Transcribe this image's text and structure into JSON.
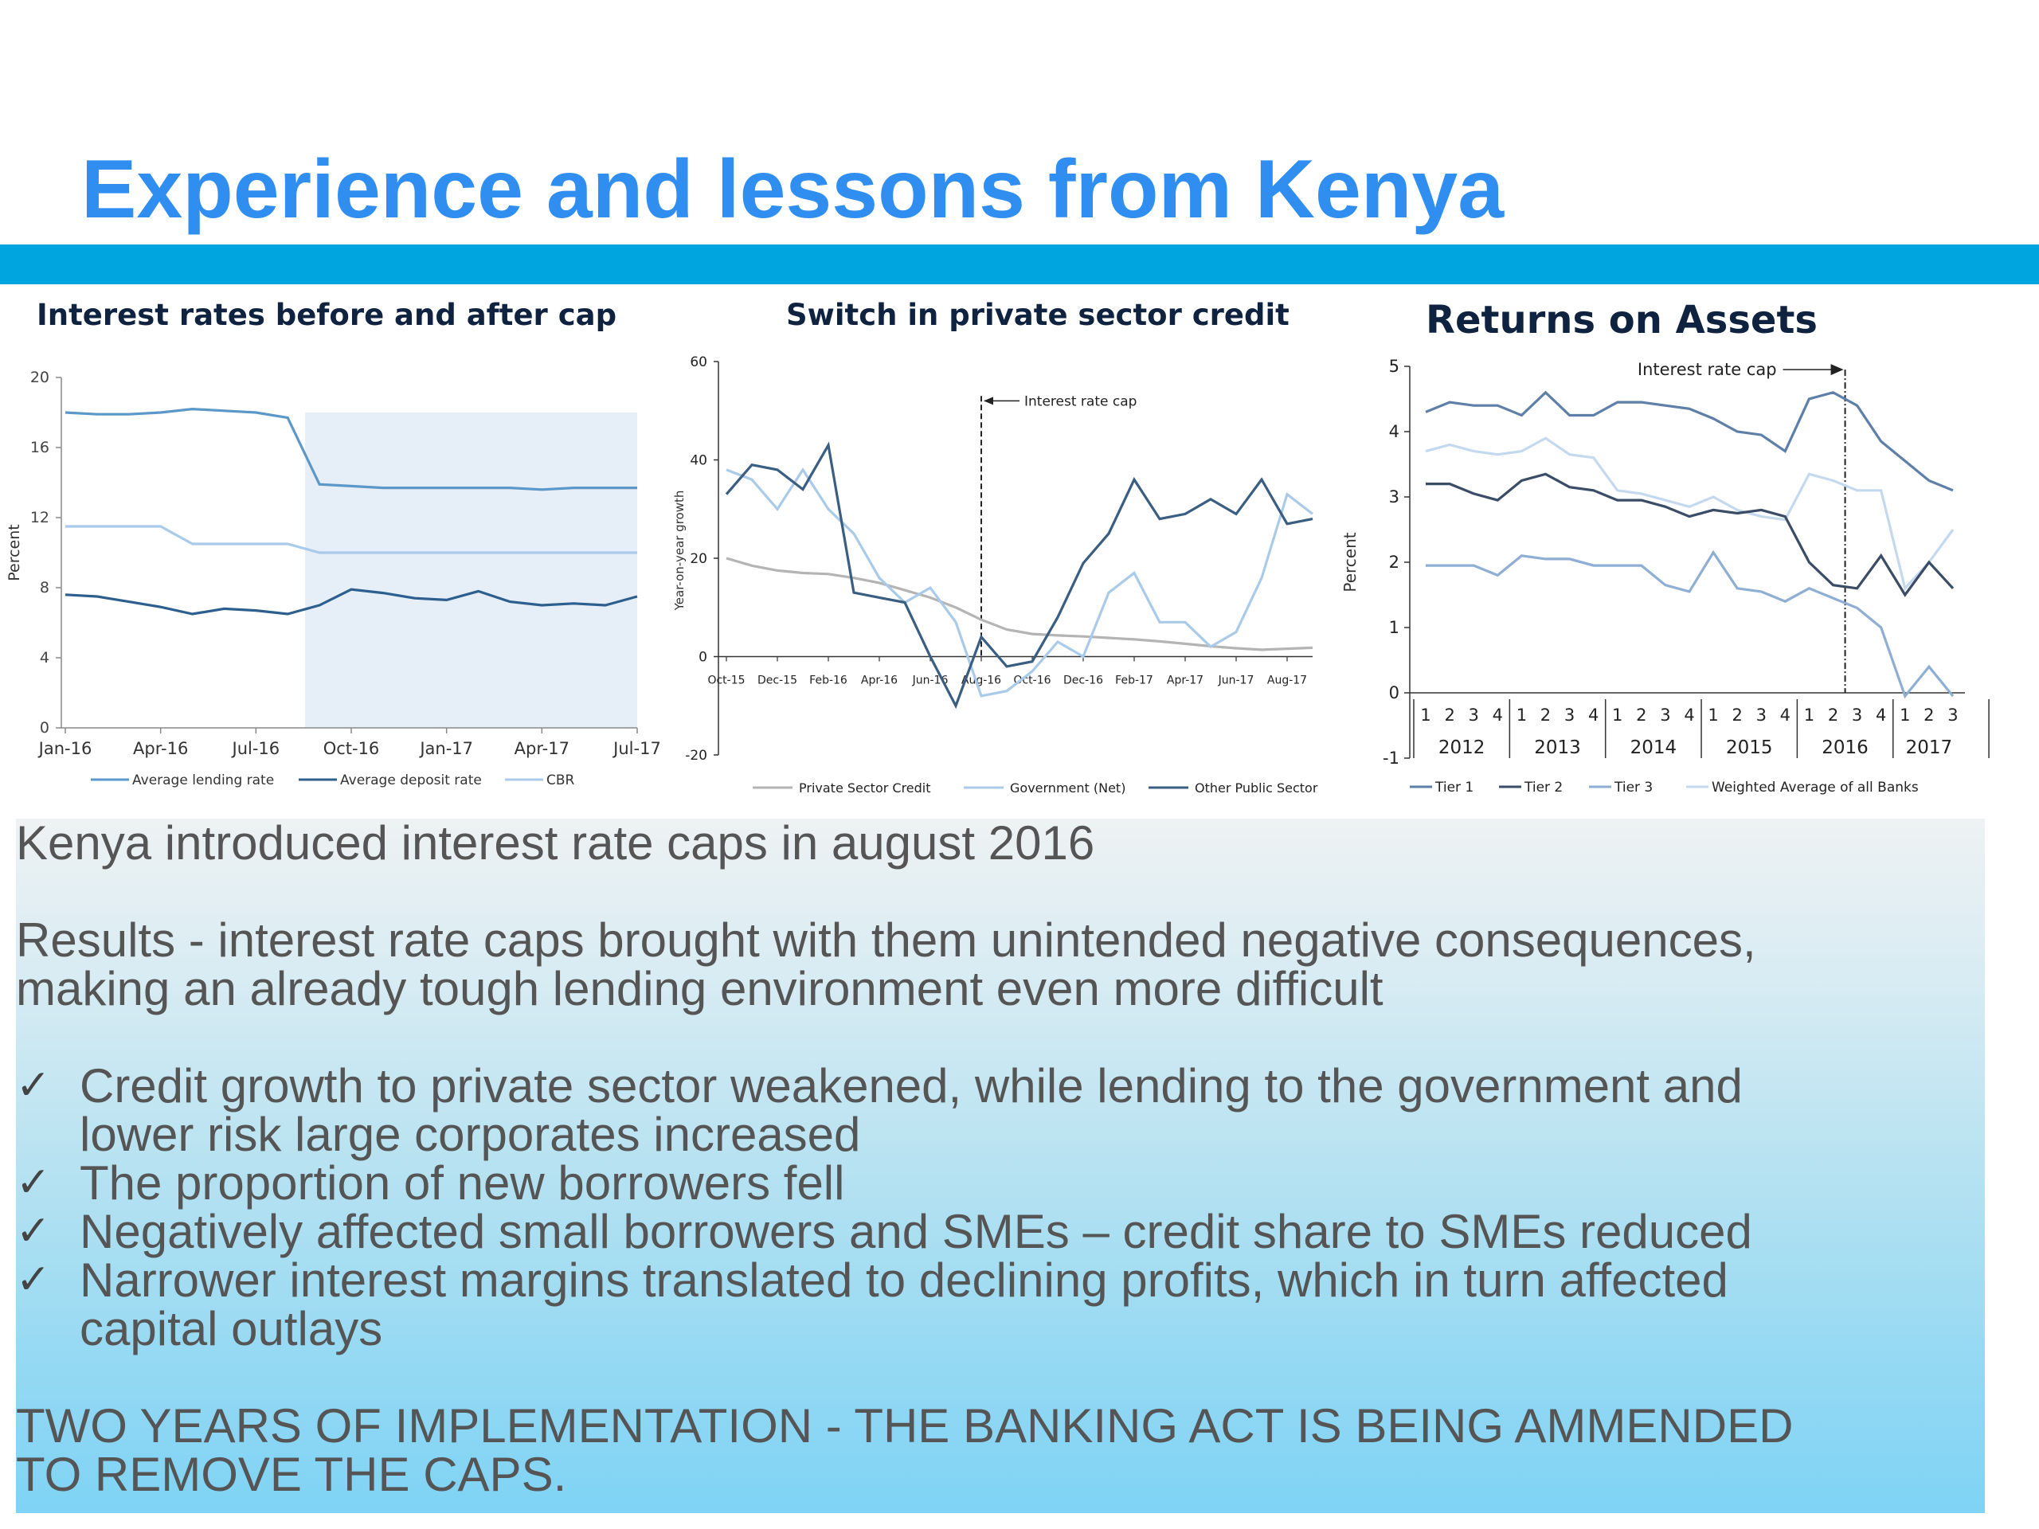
{
  "slide": {
    "title": "Experience and lessons from Kenya"
  },
  "body": {
    "intro": "Kenya introduced interest rate caps in august 2016",
    "results_line1": "Results - interest rate caps brought with them unintended negative consequences,",
    "results_line2": "making an already tough lending environment even more difficult",
    "bullet_icon": "check-mark",
    "bullets": [
      {
        "line1": "Credit growth to private sector weakened, while lending to the government and",
        "line2": "lower risk large corporates increased"
      },
      {
        "line1": "The proportion of new borrowers fell"
      },
      {
        "line1": "Negatively affected small borrowers and SMEs – credit share to SMEs reduced"
      },
      {
        "line1": "Narrower interest margins translated to declining profits, which in turn affected",
        "line2": "capital outlays"
      }
    ],
    "conclusion_line1": "TWO YEARS OF IMPLEMENTATION  - THE BANKING ACT IS BEING AMMENDED",
    "conclusion_line2": "TO REMOVE THE CAPS."
  },
  "colors": {
    "title": "#2f8ef0",
    "band": "#00a5e0",
    "shade": "#e6eef7"
  },
  "chart_data": [
    {
      "type": "line",
      "title": "Interest rates before and after cap",
      "ylabel": "Percent",
      "ylim": [
        0,
        20
      ],
      "yticks": [
        0,
        4,
        8,
        12,
        16,
        20
      ],
      "x_tick_labels": [
        "Jan-16",
        "Apr-16",
        "Jul-16",
        "Oct-16",
        "Jan-17",
        "Apr-17",
        "Jul-17"
      ],
      "x": [
        "Jan-16",
        "Feb-16",
        "Mar-16",
        "Apr-16",
        "May-16",
        "Jun-16",
        "Jul-16",
        "Aug-16",
        "Sep-16",
        "Oct-16",
        "Nov-16",
        "Dec-16",
        "Jan-17",
        "Feb-17",
        "Mar-17",
        "Apr-17",
        "May-17",
        "Jun-17",
        "Jul-17"
      ],
      "shaded_from_index": 8,
      "legend_position": "bottom",
      "series": [
        {
          "name": "Average lending rate",
          "color": "#5b97c9",
          "width": 2.2,
          "values": [
            18.0,
            17.9,
            17.9,
            18.0,
            18.2,
            18.1,
            18.0,
            17.7,
            13.9,
            13.8,
            13.7,
            13.7,
            13.7,
            13.7,
            13.7,
            13.6,
            13.7,
            13.7,
            13.7
          ]
        },
        {
          "name": "Average deposit rate",
          "color": "#2c5f8e",
          "width": 2.2,
          "values": [
            7.6,
            7.5,
            7.2,
            6.9,
            6.5,
            6.8,
            6.7,
            6.5,
            7.0,
            7.9,
            7.7,
            7.4,
            7.3,
            7.8,
            7.2,
            7.0,
            7.1,
            7.0,
            7.5
          ]
        },
        {
          "name": "CBR",
          "color": "#a9cbe9",
          "width": 2.2,
          "values": [
            11.5,
            11.5,
            11.5,
            11.5,
            10.5,
            10.5,
            10.5,
            10.5,
            10.0,
            10.0,
            10.0,
            10.0,
            10.0,
            10.0,
            10.0,
            10.0,
            10.0,
            10.0,
            10.0
          ]
        }
      ]
    },
    {
      "type": "line",
      "title": "Switch in private sector credit",
      "ylabel": "Year-on-year growth",
      "ylim": [
        -20,
        60
      ],
      "yticks": [
        -20,
        0,
        20,
        40,
        60
      ],
      "x_tick_labels": [
        "Oct-15",
        "Dec-15",
        "Feb-16",
        "Apr-16",
        "Jun-16",
        "Aug-16",
        "Oct-16",
        "Dec-16",
        "Feb-17",
        "Apr-17",
        "Jun-17",
        "Aug-17"
      ],
      "x": [
        "Oct-15",
        "Nov-15",
        "Dec-15",
        "Jan-16",
        "Feb-16",
        "Mar-16",
        "Apr-16",
        "May-16",
        "Jun-16",
        "Jul-16",
        "Aug-16",
        "Sep-16",
        "Oct-16",
        "Nov-16",
        "Dec-16",
        "Jan-17",
        "Feb-17",
        "Mar-17",
        "Apr-17",
        "May-17",
        "Jun-17",
        "Jul-17",
        "Aug-17",
        "Sep-17"
      ],
      "annotation": {
        "text": "Interest rate cap",
        "at_index": 10
      },
      "legend_position": "bottom",
      "series": [
        {
          "name": "Private Sector Credit",
          "color": "#b4b4b4",
          "width": 2.5,
          "values": [
            20,
            18.5,
            17.5,
            17,
            16.8,
            16,
            15,
            13.5,
            12,
            10,
            7.5,
            5.5,
            4.6,
            4.3,
            4.1,
            3.8,
            3.5,
            3.1,
            2.6,
            2.1,
            1.7,
            1.4,
            1.6,
            1.8
          ]
        },
        {
          "name": "Government (Net)",
          "color": "#a9cbe9",
          "width": 2.5,
          "values": [
            38,
            36,
            30,
            38,
            30,
            25,
            16,
            11,
            14,
            7,
            -8,
            -7,
            -3,
            3,
            0,
            13,
            17,
            7,
            7,
            2,
            5,
            16,
            33,
            29
          ]
        },
        {
          "name": "Other Public Sector",
          "color": "#3a5d82",
          "width": 2.5,
          "values": [
            33,
            39,
            38,
            34,
            43,
            13,
            12,
            11,
            0,
            -10,
            4,
            -2,
            -1,
            8,
            19,
            25,
            36,
            28,
            29,
            32,
            29,
            36,
            27,
            28
          ]
        }
      ]
    },
    {
      "type": "line",
      "title": "Returns on Assets",
      "ylabel": "Percent",
      "ylim": [
        -1,
        5
      ],
      "yticks": [
        -1,
        0,
        1,
        2,
        3,
        4,
        5
      ],
      "quarters": [
        "1",
        "2",
        "3",
        "4",
        "1",
        "2",
        "3",
        "4",
        "1",
        "2",
        "3",
        "4",
        "1",
        "2",
        "3",
        "4",
        "1",
        "2",
        "3",
        "4",
        "1",
        "2",
        "3"
      ],
      "years": [
        "2012",
        "2013",
        "2014",
        "2015",
        "2016",
        "2017"
      ],
      "annotation": {
        "text": "Interest rate cap",
        "at_index": 18
      },
      "legend_position": "bottom",
      "series": [
        {
          "name": "Tier 1",
          "color": "#5d7fa8",
          "width": 2.5,
          "values": [
            4.3,
            4.45,
            4.4,
            4.4,
            4.25,
            4.6,
            4.25,
            4.25,
            4.45,
            4.45,
            4.4,
            4.35,
            4.2,
            4.0,
            3.95,
            3.7,
            4.5,
            4.6,
            4.4,
            3.85,
            3.55,
            3.25,
            3.1
          ]
        },
        {
          "name": "Tier 2",
          "color": "#3a4c66",
          "width": 2.5,
          "values": [
            3.2,
            3.2,
            3.05,
            2.95,
            3.25,
            3.35,
            3.15,
            3.1,
            2.95,
            2.95,
            2.85,
            2.7,
            2.8,
            2.75,
            2.8,
            2.7,
            2.0,
            1.65,
            1.6,
            2.1,
            1.5,
            2.0,
            1.6
          ]
        },
        {
          "name": "Tier 3",
          "color": "#8eaed4",
          "width": 2.5,
          "values": [
            1.95,
            1.95,
            1.95,
            1.8,
            2.1,
            2.05,
            2.05,
            1.95,
            1.95,
            1.95,
            1.65,
            1.55,
            2.15,
            1.6,
            1.55,
            1.4,
            1.6,
            1.45,
            1.3,
            1.0,
            -0.05,
            0.4,
            -0.05
          ]
        },
        {
          "name": "Weighted Average of all Banks",
          "color": "#c5d9ee",
          "width": 2.5,
          "values": [
            3.7,
            3.8,
            3.7,
            3.65,
            3.7,
            3.9,
            3.65,
            3.6,
            3.1,
            3.05,
            2.95,
            2.85,
            3.0,
            2.8,
            2.7,
            2.65,
            3.35,
            3.25,
            3.1,
            3.1,
            1.6,
            2.0,
            2.5
          ]
        }
      ]
    }
  ]
}
